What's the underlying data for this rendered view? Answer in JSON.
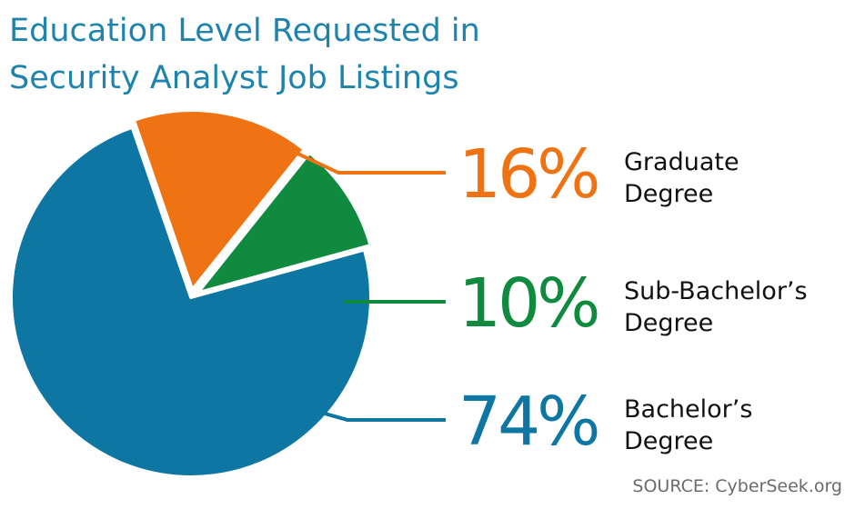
{
  "title_lines": [
    "Education Level Requested in",
    "Security Analyst Job Listings"
  ],
  "source": "SOURCE: CyberSeek.org",
  "colors": {
    "title": "#1f84ad",
    "bachelors": "#0d76a3",
    "graduate": "#ef7313",
    "sub_bachelors": "#0f8a3e",
    "label_text": "#111111",
    "source_text": "#6b6b6b"
  },
  "chart_data": {
    "type": "pie",
    "title": "Education Level Requested in Security Analyst Job Listings",
    "slices": [
      {
        "key": "graduate",
        "value": 16,
        "percent_label": "16%",
        "label_lines": [
          "Graduate",
          "Degree"
        ],
        "color": "#ef7313",
        "exploded": true
      },
      {
        "key": "sub_bachelors",
        "value": 10,
        "percent_label": "10%",
        "label_lines": [
          "Sub-Bachelor’s",
          "Degree"
        ],
        "color": "#0f8a3e",
        "exploded": true
      },
      {
        "key": "bachelors",
        "value": 74,
        "percent_label": "74%",
        "label_lines": [
          "Bachelor’s",
          "Degree"
        ],
        "color": "#0d76a3",
        "exploded": false
      }
    ],
    "legend_placement": "right"
  }
}
